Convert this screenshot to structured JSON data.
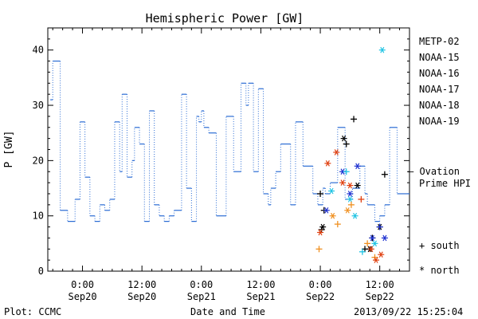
{
  "chart_data": {
    "type": "line",
    "title": "Hemispheric Power [GW]",
    "ylabel": "P [GW]",
    "xlabel": "Date and Time",
    "ylim": [
      0,
      44
    ],
    "yticks": [
      0,
      10,
      20,
      30,
      40
    ],
    "xlim": [
      "2013-09-19 17:00",
      "2013-09-22 18:00"
    ],
    "x_ticks": [
      {
        "time": "2013-09-20 00:00",
        "top": "0:00",
        "bottom": "Sep20"
      },
      {
        "time": "2013-09-20 12:00",
        "top": "12:00",
        "bottom": "Sep20"
      },
      {
        "time": "2013-09-21 00:00",
        "top": "0:00",
        "bottom": "Sep21"
      },
      {
        "time": "2013-09-21 12:00",
        "top": "12:00",
        "bottom": "Sep21"
      },
      {
        "time": "2013-09-22 00:00",
        "top": "0:00",
        "bottom": "Sep22"
      },
      {
        "time": "2013-09-22 12:00",
        "top": "12:00",
        "bottom": "Sep22"
      }
    ],
    "legend": {
      "placement": "right",
      "satellites": [
        {
          "name": "METP-02",
          "color": "#000000"
        },
        {
          "name": "NOAA-15",
          "color": "#1c2fd0"
        },
        {
          "name": "NOAA-16",
          "color": "#1fc3e3"
        },
        {
          "name": "NOAA-17",
          "color": "#40e080"
        },
        {
          "name": "NOAA-18",
          "color": "#f09020"
        },
        {
          "name": "NOAA-19",
          "color": "#e04010"
        }
      ],
      "ovation_label_1": "— Ovation",
      "ovation_label_2": "Prime HPI",
      "ovation_color": "#2b6cd4",
      "south_label": "+ south",
      "north_label": "* north"
    },
    "series": [
      {
        "name": "Ovation Prime HPI",
        "style": "stepped line",
        "color": "#2b6cd4",
        "points": [
          [
            "2013-09-19 17:30",
            31
          ],
          [
            "2013-09-19 18:00",
            38
          ],
          [
            "2013-09-19 19:30",
            11
          ],
          [
            "2013-09-19 21:00",
            9
          ],
          [
            "2013-09-19 22:30",
            13
          ],
          [
            "2013-09-19 23:30",
            27
          ],
          [
            "2013-09-20 00:30",
            17
          ],
          [
            "2013-09-20 01:30",
            10
          ],
          [
            "2013-09-20 02:30",
            9
          ],
          [
            "2013-09-20 03:30",
            12
          ],
          [
            "2013-09-20 04:30",
            11
          ],
          [
            "2013-09-20 05:30",
            13
          ],
          [
            "2013-09-20 06:30",
            27
          ],
          [
            "2013-09-20 07:30",
            18
          ],
          [
            "2013-09-20 08:00",
            32
          ],
          [
            "2013-09-20 09:00",
            17
          ],
          [
            "2013-09-20 10:00",
            20
          ],
          [
            "2013-09-20 10:30",
            26
          ],
          [
            "2013-09-20 11:30",
            23
          ],
          [
            "2013-09-20 12:30",
            9
          ],
          [
            "2013-09-20 13:30",
            29
          ],
          [
            "2013-09-20 14:30",
            12
          ],
          [
            "2013-09-20 15:30",
            10
          ],
          [
            "2013-09-20 16:30",
            9
          ],
          [
            "2013-09-20 17:30",
            10
          ],
          [
            "2013-09-20 18:30",
            11
          ],
          [
            "2013-09-20 20:00",
            32
          ],
          [
            "2013-09-20 21:00",
            15
          ],
          [
            "2013-09-20 22:00",
            9
          ],
          [
            "2013-09-20 23:00",
            28
          ],
          [
            "2013-09-20 23:30",
            27
          ],
          [
            "2013-09-21 00:00",
            29
          ],
          [
            "2013-09-21 00:30",
            26
          ],
          [
            "2013-09-21 01:30",
            25
          ],
          [
            "2013-09-21 03:00",
            10
          ],
          [
            "2013-09-21 05:00",
            28
          ],
          [
            "2013-09-21 06:30",
            18
          ],
          [
            "2013-09-21 08:00",
            34
          ],
          [
            "2013-09-21 09:00",
            30
          ],
          [
            "2013-09-21 09:30",
            34
          ],
          [
            "2013-09-21 10:30",
            18
          ],
          [
            "2013-09-21 11:30",
            33
          ],
          [
            "2013-09-21 12:30",
            14
          ],
          [
            "2013-09-21 13:30",
            12
          ],
          [
            "2013-09-21 14:00",
            15
          ],
          [
            "2013-09-21 15:00",
            18
          ],
          [
            "2013-09-21 16:00",
            23
          ],
          [
            "2013-09-21 18:00",
            12
          ],
          [
            "2013-09-21 19:00",
            27
          ],
          [
            "2013-09-21 20:30",
            19
          ],
          [
            "2013-09-21 22:30",
            14
          ],
          [
            "2013-09-21 23:30",
            12
          ],
          [
            "2013-09-22 00:30",
            15
          ],
          [
            "2013-09-22 01:00",
            14
          ],
          [
            "2013-09-22 02:00",
            16
          ],
          [
            "2013-09-22 03:30",
            26
          ],
          [
            "2013-09-22 05:00",
            13
          ],
          [
            "2013-09-22 06:30",
            15
          ],
          [
            "2013-09-22 08:00",
            19
          ],
          [
            "2013-09-22 09:00",
            14
          ],
          [
            "2013-09-22 09:30",
            12
          ],
          [
            "2013-09-22 11:00",
            9
          ],
          [
            "2013-09-22 12:00",
            10
          ],
          [
            "2013-09-22 13:00",
            12
          ],
          [
            "2013-09-22 14:00",
            26
          ],
          [
            "2013-09-22 15:30",
            14
          ]
        ]
      },
      {
        "name": "METP-02",
        "color": "#000000",
        "points": [
          {
            "t": "2013-09-22 00:00",
            "v": 14,
            "m": "plus"
          },
          {
            "t": "2013-09-22 00:15",
            "v": 7.5,
            "m": "plus"
          },
          {
            "t": "2013-09-22 00:30",
            "v": 8,
            "m": "star"
          },
          {
            "t": "2013-09-22 00:45",
            "v": 11,
            "m": "plus"
          },
          {
            "t": "2013-09-22 04:45",
            "v": 24,
            "m": "star"
          },
          {
            "t": "2013-09-22 05:15",
            "v": 23,
            "m": "plus"
          },
          {
            "t": "2013-09-22 06:45",
            "v": 27.5,
            "m": "plus"
          },
          {
            "t": "2013-09-22 07:30",
            "v": 15.5,
            "m": "star"
          },
          {
            "t": "2013-09-22 09:00",
            "v": 4,
            "m": "plus"
          },
          {
            "t": "2013-09-22 10:00",
            "v": 4,
            "m": "star"
          },
          {
            "t": "2013-09-22 10:30",
            "v": 6,
            "m": "plus"
          },
          {
            "t": "2013-09-22 12:00",
            "v": 8,
            "m": "star"
          },
          {
            "t": "2013-09-22 13:00",
            "v": 17.5,
            "m": "plus"
          }
        ]
      },
      {
        "name": "NOAA-15",
        "color": "#1c2fd0",
        "points": [
          {
            "t": "2013-09-22 01:15",
            "v": 11,
            "m": "star"
          },
          {
            "t": "2013-09-22 04:30",
            "v": 18,
            "m": "star"
          },
          {
            "t": "2013-09-22 06:00",
            "v": 14,
            "m": "star"
          },
          {
            "t": "2013-09-22 07:30",
            "v": 19,
            "m": "star"
          },
          {
            "t": "2013-09-22 10:30",
            "v": 6,
            "m": "star"
          },
          {
            "t": "2013-09-22 12:00",
            "v": 8,
            "m": "plus"
          },
          {
            "t": "2013-09-22 13:00",
            "v": 6,
            "m": "star"
          }
        ]
      },
      {
        "name": "NOAA-16",
        "color": "#1fc3e3",
        "points": [
          {
            "t": "2013-09-22 02:15",
            "v": 14.5,
            "m": "star"
          },
          {
            "t": "2013-09-22 05:15",
            "v": 18,
            "m": "plus"
          },
          {
            "t": "2013-09-22 06:00",
            "v": 13,
            "m": "star"
          },
          {
            "t": "2013-09-22 07:00",
            "v": 10,
            "m": "star"
          },
          {
            "t": "2013-09-22 08:30",
            "v": 3.5,
            "m": "plus"
          },
          {
            "t": "2013-09-22 11:00",
            "v": 5,
            "m": "star"
          },
          {
            "t": "2013-09-22 12:30",
            "v": 40,
            "m": "star"
          }
        ]
      },
      {
        "name": "NOAA-18",
        "color": "#f09020",
        "points": [
          {
            "t": "2013-09-21 23:45",
            "v": 4,
            "m": "plus"
          },
          {
            "t": "2013-09-22 02:30",
            "v": 10,
            "m": "star"
          },
          {
            "t": "2013-09-22 03:30",
            "v": 8.5,
            "m": "plus"
          },
          {
            "t": "2013-09-22 05:30",
            "v": 11,
            "m": "star"
          },
          {
            "t": "2013-09-22 06:15",
            "v": 12,
            "m": "plus"
          },
          {
            "t": "2013-09-22 09:30",
            "v": 5,
            "m": "plus"
          },
          {
            "t": "2013-09-22 11:00",
            "v": 2.5,
            "m": "plus"
          }
        ]
      },
      {
        "name": "NOAA-19",
        "color": "#e04010",
        "points": [
          {
            "t": "2013-09-22 00:00",
            "v": 7,
            "m": "star"
          },
          {
            "t": "2013-09-22 01:30",
            "v": 19.5,
            "m": "star"
          },
          {
            "t": "2013-09-22 03:15",
            "v": 21.5,
            "m": "star"
          },
          {
            "t": "2013-09-22 04:30",
            "v": 16,
            "m": "star"
          },
          {
            "t": "2013-09-22 06:00",
            "v": 15.5,
            "m": "star"
          },
          {
            "t": "2013-09-22 08:15",
            "v": 13,
            "m": "plus"
          },
          {
            "t": "2013-09-22 10:15",
            "v": 4,
            "m": "star"
          },
          {
            "t": "2013-09-22 11:15",
            "v": 2,
            "m": "star"
          },
          {
            "t": "2013-09-22 12:15",
            "v": 3,
            "m": "star"
          }
        ]
      }
    ]
  },
  "footer": {
    "plot_source": "Plot: CCMC",
    "timestamp": "2013/09/22 15:25:04"
  }
}
